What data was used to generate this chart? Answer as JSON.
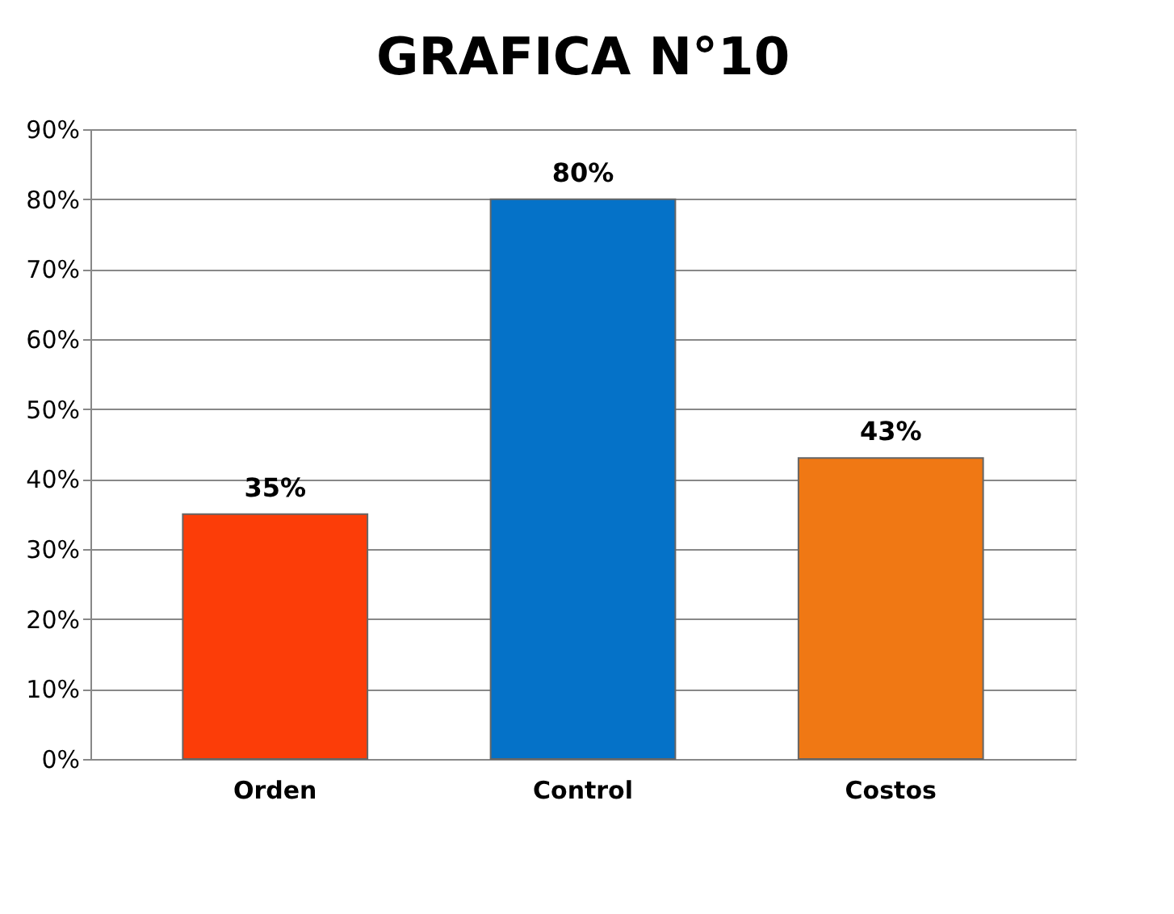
{
  "chart_data": {
    "type": "bar",
    "title": "GRAFICA N°10",
    "categories": [
      "Orden",
      "Control",
      "Costos"
    ],
    "values": [
      35,
      80,
      43
    ],
    "colors": [
      "#fc3d08",
      "#0572c8",
      "#f07814"
    ],
    "value_labels": [
      "35%",
      "80%",
      "43%"
    ],
    "ylim": [
      0,
      90
    ],
    "yticks": [
      {
        "value": 0,
        "label": "0%"
      },
      {
        "value": 10,
        "label": "10%"
      },
      {
        "value": 20,
        "label": "20%"
      },
      {
        "value": 30,
        "label": "30%"
      },
      {
        "value": 40,
        "label": "40%"
      },
      {
        "value": 50,
        "label": "50%"
      },
      {
        "value": 60,
        "label": "60%"
      },
      {
        "value": 70,
        "label": "70%"
      },
      {
        "value": 80,
        "label": "80%"
      },
      {
        "value": 90,
        "label": "90%"
      }
    ],
    "grid": "y"
  }
}
